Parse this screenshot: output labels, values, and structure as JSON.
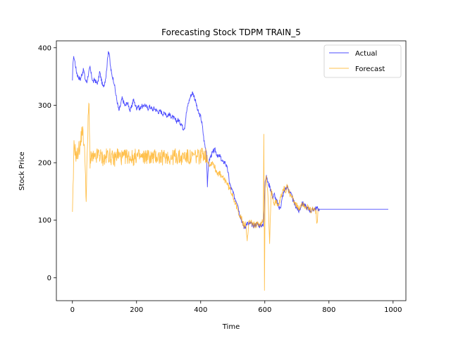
{
  "chart_data": {
    "type": "line",
    "title": "Forecasting Stock TDPM TRAIN_5",
    "xlabel": "Time",
    "ylabel": "Stock Price",
    "xlim": [
      -50,
      1040
    ],
    "ylim": [
      -40,
      412
    ],
    "xticks": [
      0,
      200,
      400,
      600,
      800,
      1000
    ],
    "yticks": [
      0,
      100,
      200,
      300,
      400
    ],
    "grid": false,
    "legend": {
      "position": "top-right"
    },
    "series": [
      {
        "name": "Actual",
        "color": "#0000ff",
        "keypoints": [
          [
            0,
            340
          ],
          [
            2,
            378
          ],
          [
            5,
            384
          ],
          [
            8,
            375
          ],
          [
            12,
            360
          ],
          [
            16,
            352
          ],
          [
            20,
            348
          ],
          [
            25,
            345
          ],
          [
            30,
            355
          ],
          [
            35,
            362
          ],
          [
            40,
            345
          ],
          [
            45,
            340
          ],
          [
            50,
            355
          ],
          [
            55,
            365
          ],
          [
            60,
            350
          ],
          [
            65,
            340
          ],
          [
            70,
            345
          ],
          [
            75,
            338
          ],
          [
            80,
            340
          ],
          [
            85,
            358
          ],
          [
            90,
            345
          ],
          [
            95,
            332
          ],
          [
            100,
            338
          ],
          [
            105,
            352
          ],
          [
            108,
            370
          ],
          [
            112,
            395
          ],
          [
            115,
            390
          ],
          [
            118,
            370
          ],
          [
            122,
            355
          ],
          [
            126,
            348
          ],
          [
            130,
            340
          ],
          [
            135,
            320
          ],
          [
            140,
            305
          ],
          [
            145,
            290
          ],
          [
            150,
            300
          ],
          [
            155,
            312
          ],
          [
            160,
            305
          ],
          [
            165,
            298
          ],
          [
            170,
            305
          ],
          [
            175,
            300
          ],
          [
            180,
            290
          ],
          [
            185,
            298
          ],
          [
            190,
            310
          ],
          [
            195,
            302
          ],
          [
            200,
            295
          ],
          [
            205,
            300
          ],
          [
            210,
            292
          ],
          [
            215,
            300
          ],
          [
            220,
            296
          ],
          [
            225,
            302
          ],
          [
            230,
            298
          ],
          [
            235,
            294
          ],
          [
            240,
            298
          ],
          [
            245,
            296
          ],
          [
            250,
            292
          ],
          [
            255,
            295
          ],
          [
            260,
            292
          ],
          [
            265,
            290
          ],
          [
            270,
            288
          ],
          [
            275,
            290
          ],
          [
            280,
            286
          ],
          [
            285,
            285
          ],
          [
            290,
            288
          ],
          [
            295,
            280
          ],
          [
            300,
            285
          ],
          [
            305,
            282
          ],
          [
            310,
            280
          ],
          [
            315,
            278
          ],
          [
            320,
            275
          ],
          [
            325,
            272
          ],
          [
            330,
            275
          ],
          [
            335,
            270
          ],
          [
            340,
            268
          ],
          [
            345,
            260
          ],
          [
            350,
            262
          ],
          [
            355,
            285
          ],
          [
            360,
            300
          ],
          [
            365,
            310
          ],
          [
            370,
            318
          ],
          [
            375,
            322
          ],
          [
            380,
            315
          ],
          [
            385,
            305
          ],
          [
            390,
            292
          ],
          [
            395,
            285
          ],
          [
            400,
            280
          ],
          [
            405,
            265
          ],
          [
            410,
            240
          ],
          [
            415,
            225
          ],
          [
            418,
            220
          ],
          [
            421,
            160
          ],
          [
            425,
            200
          ],
          [
            430,
            210
          ],
          [
            435,
            215
          ],
          [
            440,
            220
          ],
          [
            445,
            222
          ],
          [
            450,
            215
          ],
          [
            455,
            210
          ],
          [
            460,
            212
          ],
          [
            465,
            205
          ],
          [
            470,
            200
          ],
          [
            475,
            202
          ],
          [
            480,
            195
          ],
          [
            485,
            185
          ],
          [
            490,
            165
          ],
          [
            495,
            155
          ],
          [
            500,
            150
          ],
          [
            505,
            140
          ],
          [
            510,
            135
          ],
          [
            515,
            130
          ],
          [
            520,
            115
          ],
          [
            525,
            105
          ],
          [
            530,
            95
          ],
          [
            535,
            88
          ],
          [
            540,
            90
          ],
          [
            545,
            95
          ],
          [
            550,
            92
          ],
          [
            555,
            95
          ],
          [
            560,
            92
          ],
          [
            565,
            90
          ],
          [
            570,
            92
          ],
          [
            575,
            94
          ],
          [
            580,
            92
          ],
          [
            585,
            90
          ],
          [
            590,
            92
          ],
          [
            595,
            90
          ],
          [
            598,
            120
          ],
          [
            601,
            170
          ],
          [
            605,
            175
          ],
          [
            610,
            165
          ],
          [
            615,
            160
          ],
          [
            620,
            150
          ],
          [
            625,
            140
          ],
          [
            630,
            145
          ],
          [
            635,
            135
          ],
          [
            640,
            130
          ],
          [
            645,
            120
          ],
          [
            650,
            125
          ],
          [
            655,
            140
          ],
          [
            660,
            150
          ],
          [
            665,
            155
          ],
          [
            670,
            158
          ],
          [
            675,
            152
          ],
          [
            680,
            148
          ],
          [
            685,
            140
          ],
          [
            690,
            132
          ],
          [
            695,
            125
          ],
          [
            700,
            122
          ],
          [
            705,
            115
          ],
          [
            710,
            120
          ],
          [
            715,
            128
          ],
          [
            720,
            130
          ],
          [
            725,
            125
          ],
          [
            730,
            122
          ],
          [
            735,
            120
          ],
          [
            740,
            118
          ],
          [
            745,
            116
          ],
          [
            750,
            118
          ],
          [
            755,
            120
          ],
          [
            760,
            121
          ],
          [
            765,
            120
          ],
          [
            770,
            119
          ],
          [
            780,
            119
          ],
          [
            800,
            119
          ],
          [
            850,
            119
          ],
          [
            900,
            119
          ],
          [
            950,
            119
          ],
          [
            985,
            119
          ]
        ]
      },
      {
        "name": "Forecast",
        "color": "#ffa500",
        "keypoints": [
          [
            0,
            105
          ],
          [
            2,
            150
          ],
          [
            5,
            230
          ],
          [
            8,
            225
          ],
          [
            12,
            210
          ],
          [
            16,
            215
          ],
          [
            20,
            225
          ],
          [
            25,
            230
          ],
          [
            30,
            260
          ],
          [
            35,
            240
          ],
          [
            40,
            200
          ],
          [
            43,
            130
          ],
          [
            46,
            210
          ],
          [
            50,
            290
          ],
          [
            52,
            300
          ],
          [
            55,
            200
          ],
          [
            60,
            210
          ],
          [
            70,
            205
          ],
          [
            80,
            215
          ],
          [
            90,
            210
          ],
          [
            100,
            205
          ],
          [
            110,
            215
          ],
          [
            120,
            210
          ],
          [
            130,
            205
          ],
          [
            140,
            215
          ],
          [
            150,
            210
          ],
          [
            160,
            208
          ],
          [
            170,
            212
          ],
          [
            180,
            210
          ],
          [
            190,
            208
          ],
          [
            200,
            212
          ],
          [
            210,
            210
          ],
          [
            220,
            208
          ],
          [
            230,
            212
          ],
          [
            240,
            210
          ],
          [
            250,
            209
          ],
          [
            260,
            211
          ],
          [
            270,
            210
          ],
          [
            280,
            208
          ],
          [
            290,
            212
          ],
          [
            300,
            210
          ],
          [
            310,
            208
          ],
          [
            320,
            212
          ],
          [
            330,
            210
          ],
          [
            340,
            208
          ],
          [
            350,
            212
          ],
          [
            360,
            210
          ],
          [
            370,
            208
          ],
          [
            380,
            212
          ],
          [
            390,
            210
          ],
          [
            400,
            212
          ],
          [
            405,
            215
          ],
          [
            410,
            218
          ],
          [
            415,
            212
          ],
          [
            420,
            210
          ],
          [
            425,
            200
          ],
          [
            430,
            195
          ],
          [
            435,
            202
          ],
          [
            440,
            198
          ],
          [
            445,
            190
          ],
          [
            450,
            185
          ],
          [
            455,
            182
          ],
          [
            460,
            180
          ],
          [
            465,
            175
          ],
          [
            470,
            172
          ],
          [
            475,
            170
          ],
          [
            480,
            168
          ],
          [
            485,
            160
          ],
          [
            490,
            155
          ],
          [
            495,
            150
          ],
          [
            500,
            145
          ],
          [
            505,
            135
          ],
          [
            510,
            125
          ],
          [
            515,
            118
          ],
          [
            520,
            112
          ],
          [
            525,
            105
          ],
          [
            530,
            98
          ],
          [
            535,
            90
          ],
          [
            540,
            95
          ],
          [
            545,
            60
          ],
          [
            550,
            100
          ],
          [
            555,
            98
          ],
          [
            560,
            95
          ],
          [
            565,
            92
          ],
          [
            570,
            90
          ],
          [
            575,
            92
          ],
          [
            580,
            95
          ],
          [
            585,
            90
          ],
          [
            590,
            95
          ],
          [
            595,
            100
          ],
          [
            597,
            255
          ],
          [
            599,
            -20
          ],
          [
            601,
            160
          ],
          [
            605,
            175
          ],
          [
            610,
            140
          ],
          [
            615,
            60
          ],
          [
            620,
            150
          ],
          [
            625,
            140
          ],
          [
            630,
            130
          ],
          [
            635,
            135
          ],
          [
            640,
            125
          ],
          [
            645,
            130
          ],
          [
            650,
            140
          ],
          [
            655,
            150
          ],
          [
            660,
            155
          ],
          [
            665,
            150
          ],
          [
            670,
            160
          ],
          [
            675,
            150
          ],
          [
            680,
            145
          ],
          [
            685,
            140
          ],
          [
            690,
            135
          ],
          [
            695,
            130
          ],
          [
            700,
            125
          ],
          [
            705,
            118
          ],
          [
            710,
            122
          ],
          [
            715,
            130
          ],
          [
            720,
            128
          ],
          [
            725,
            125
          ],
          [
            730,
            123
          ],
          [
            735,
            120
          ],
          [
            740,
            118
          ],
          [
            745,
            116
          ],
          [
            750,
            118
          ],
          [
            755,
            120
          ],
          [
            760,
            115
          ],
          [
            763,
            90
          ],
          [
            766,
            120
          ]
        ]
      }
    ]
  }
}
